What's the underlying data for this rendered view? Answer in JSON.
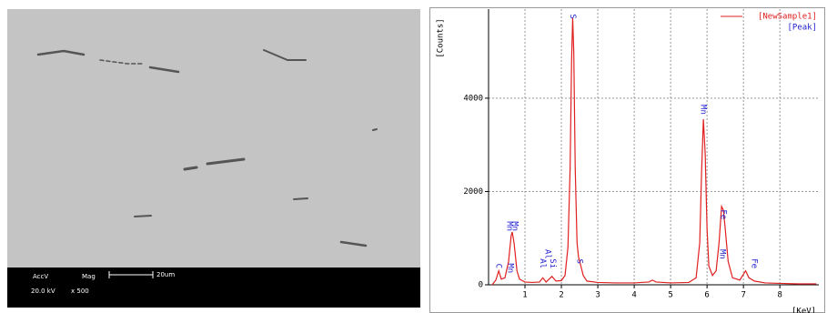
{
  "sem": {
    "labels": [
      "AccV",
      "Mag"
    ],
    "values": [
      "20.0 kV",
      "x 500"
    ],
    "scale": "20um"
  },
  "chart_data": {
    "type": "line",
    "xlabel": "[KeV]",
    "ylabel": "[Counts]",
    "xlim": [
      0,
      9.07
    ],
    "ylim": [
      0,
      5910
    ],
    "xticks": [
      1,
      2,
      3,
      4,
      5,
      6,
      7,
      8
    ],
    "yticks": [
      0,
      2000,
      4000
    ],
    "grid": true,
    "legend": "top-right",
    "series": [
      {
        "name": "[NewSample1]",
        "color": "#e02020",
        "x": [
          0.1,
          0.2,
          0.28,
          0.35,
          0.45,
          0.55,
          0.62,
          0.65,
          0.7,
          0.78,
          0.85,
          1.0,
          1.2,
          1.4,
          1.49,
          1.58,
          1.74,
          1.85,
          2.0,
          2.1,
          2.18,
          2.24,
          2.28,
          2.31,
          2.34,
          2.38,
          2.43,
          2.47,
          2.52,
          2.6,
          2.7,
          3.0,
          3.5,
          4.0,
          4.4,
          4.5,
          4.6,
          5.0,
          5.5,
          5.7,
          5.8,
          5.85,
          5.9,
          5.95,
          6.0,
          6.05,
          6.15,
          6.25,
          6.33,
          6.4,
          6.45,
          6.5,
          6.58,
          6.7,
          6.9,
          7.06,
          7.15,
          7.3,
          7.6,
          8.0,
          8.5,
          9.0
        ],
        "values": [
          0,
          100,
          300,
          120,
          150,
          500,
          1050,
          1130,
          900,
          300,
          120,
          60,
          50,
          60,
          150,
          60,
          180,
          80,
          90,
          200,
          800,
          2500,
          4800,
          5720,
          5000,
          2500,
          900,
          600,
          450,
          200,
          80,
          50,
          40,
          40,
          60,
          100,
          60,
          40,
          50,
          150,
          900,
          2400,
          3550,
          2800,
          1200,
          400,
          200,
          300,
          900,
          1680,
          1600,
          1200,
          500,
          150,
          100,
          300,
          150,
          80,
          40,
          30,
          20,
          20
        ]
      },
      {
        "name": "[Peak]",
        "color": "#2020d0"
      }
    ],
    "annotations": [
      {
        "label": "C",
        "x": 0.28,
        "y": 350
      },
      {
        "label": "Mn",
        "x": 0.58,
        "y": 1150
      },
      {
        "label": "Mn",
        "x": 0.72,
        "y": 1150
      },
      {
        "label": "Mn",
        "x": 0.6,
        "y": 250
      },
      {
        "label": "Al",
        "x": 1.49,
        "y": 350
      },
      {
        "label": "Al",
        "x": 1.62,
        "y": 550
      },
      {
        "label": "Si",
        "x": 1.76,
        "y": 350
      },
      {
        "label": "S",
        "x": 2.31,
        "y": 5700
      },
      {
        "label": "S",
        "x": 2.5,
        "y": 450
      },
      {
        "label": "Mn",
        "x": 5.9,
        "y": 3650
      },
      {
        "label": "Fe",
        "x": 6.45,
        "y": 1400
      },
      {
        "label": "Mn",
        "x": 6.42,
        "y": 550
      },
      {
        "label": "Fe",
        "x": 7.3,
        "y": 350
      }
    ]
  }
}
